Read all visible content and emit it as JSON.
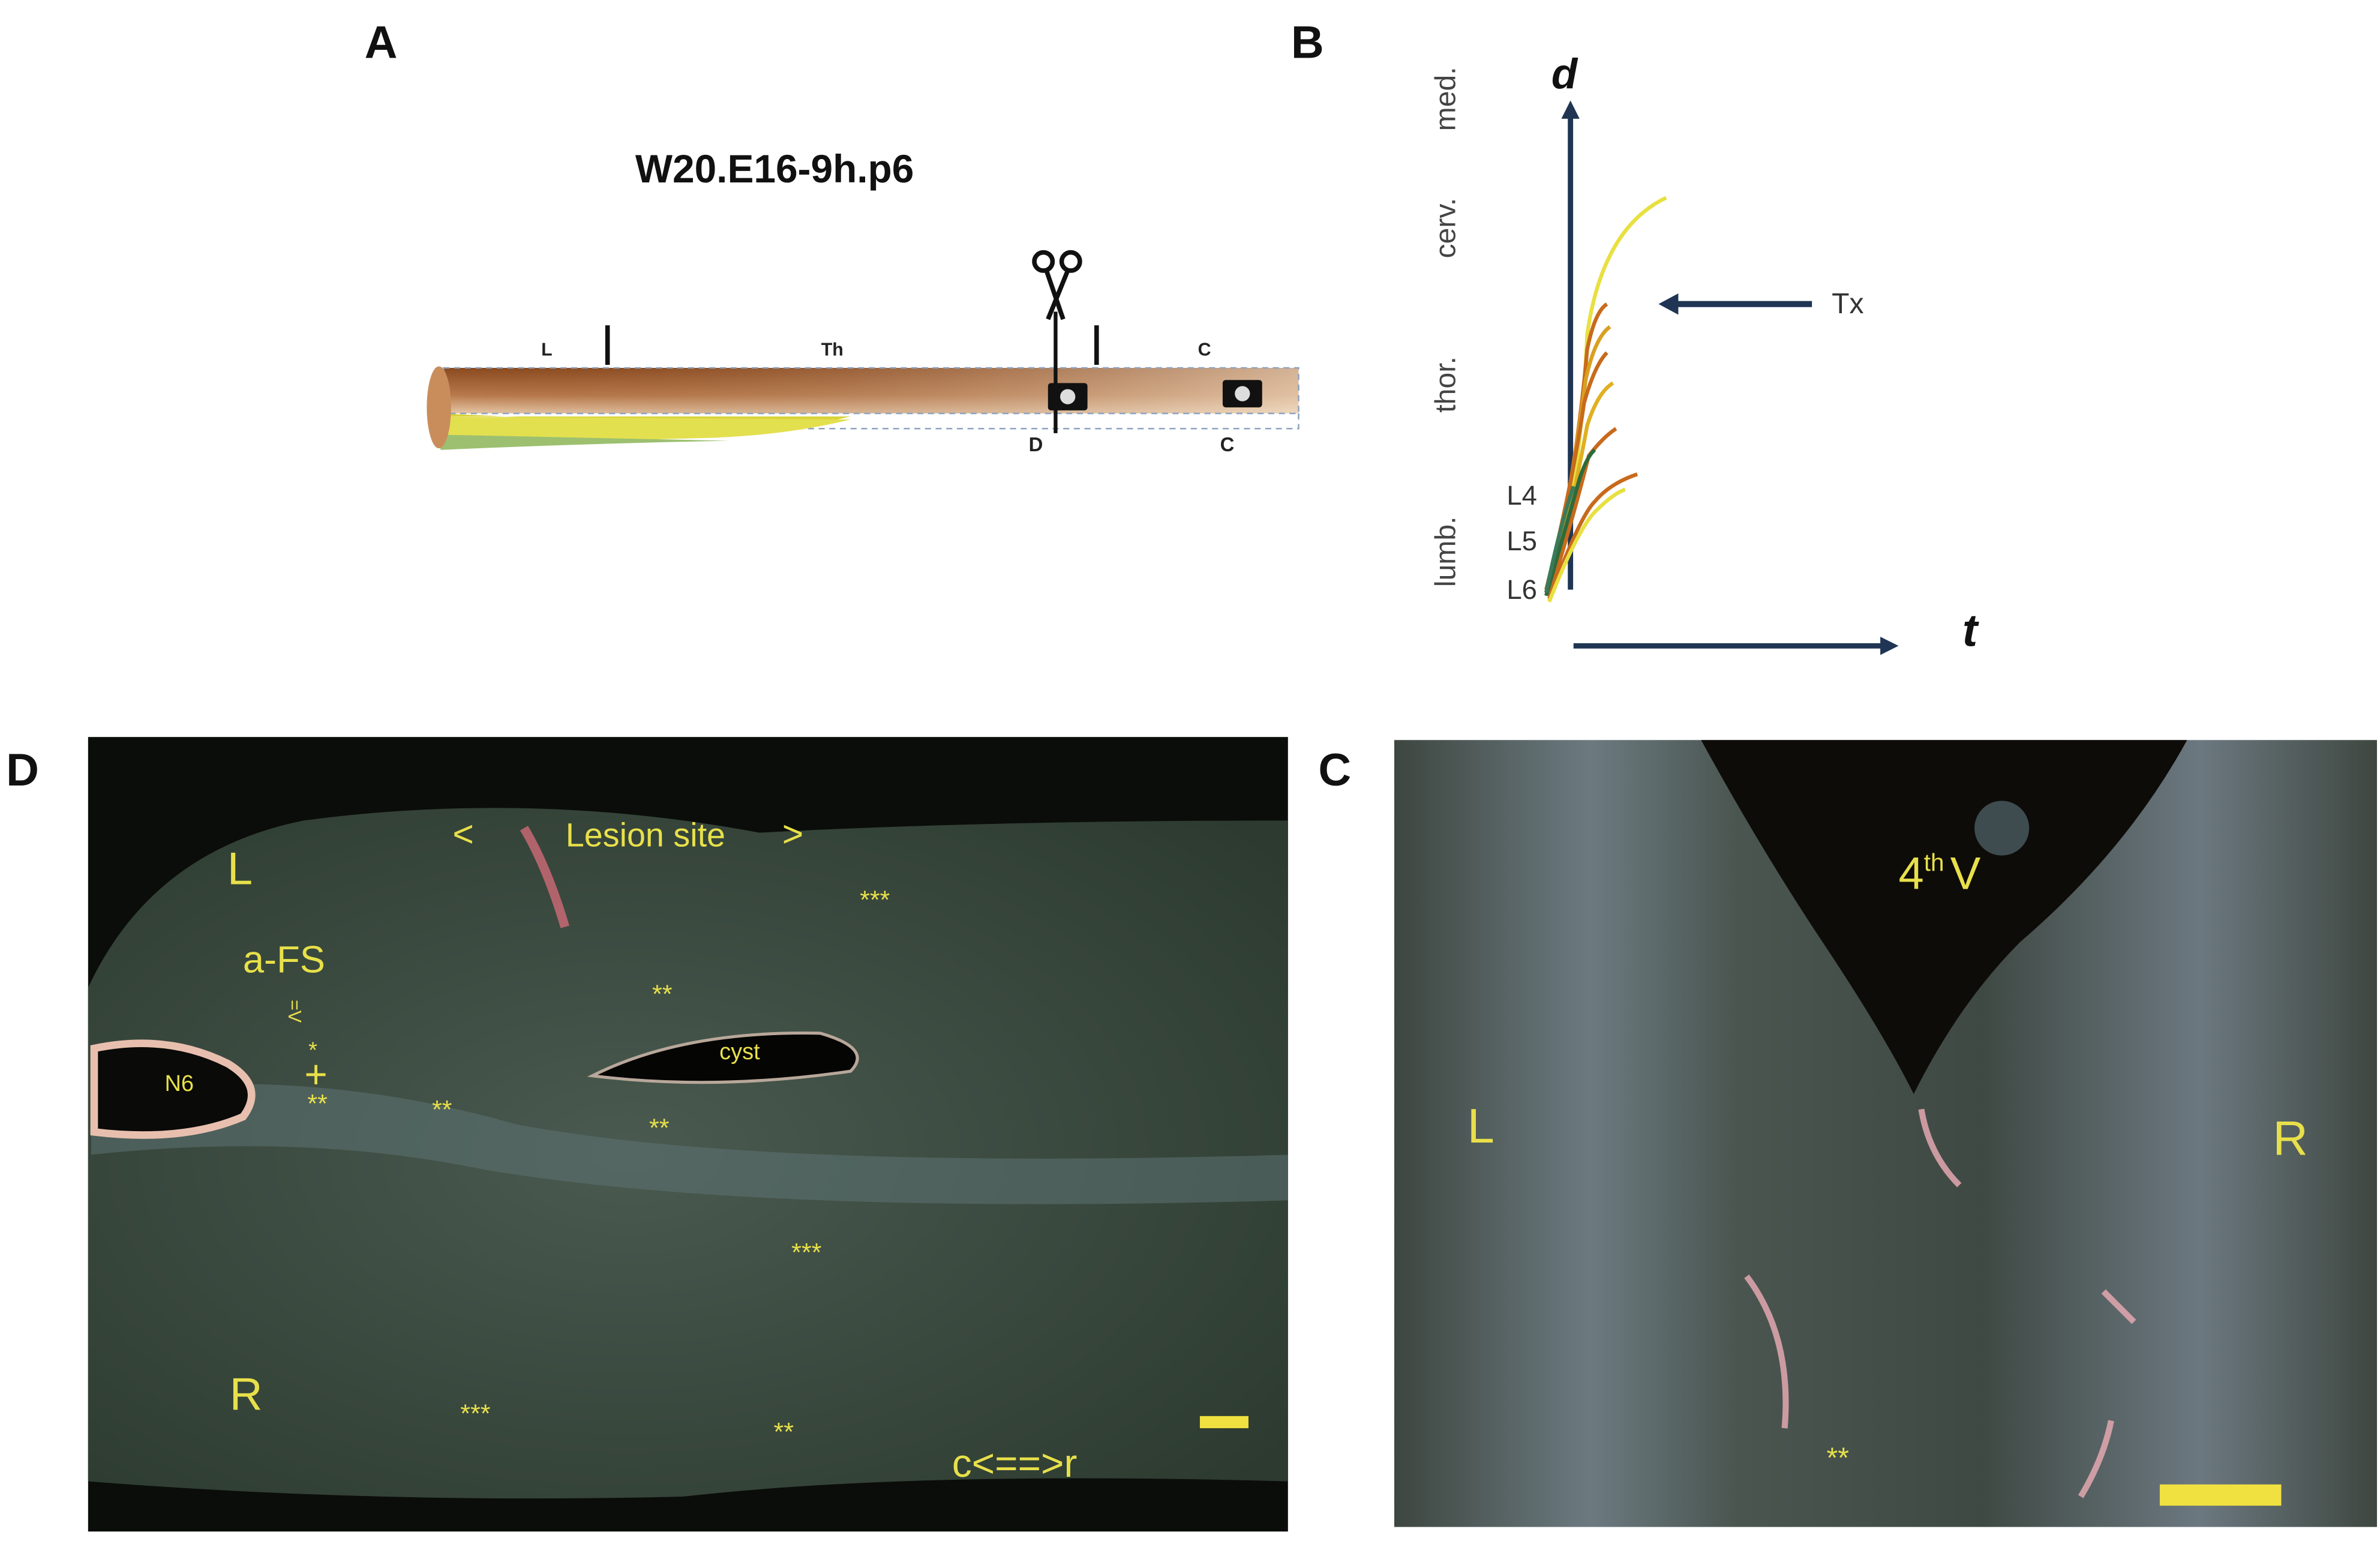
{
  "panel_a": {
    "label": "A",
    "title": "W20.E16-9h.p6",
    "segments": [
      "L",
      "Th",
      "C"
    ],
    "markers": [
      "D",
      "C"
    ]
  },
  "panel_b": {
    "label": "B",
    "y_axis": "d",
    "x_axis": "t",
    "regions": [
      "med.",
      "cerv.",
      "thor.",
      "lumb."
    ],
    "levels": [
      "L4",
      "L5",
      "L6"
    ],
    "arrow_label": "Tx"
  },
  "panel_d": {
    "label": "D",
    "lesion": [
      "<",
      "Lesion site",
      ">"
    ],
    "side_left": "L",
    "side_right": "R",
    "afs": "a-FS",
    "afs_sym": "=V",
    "nerve": "N6",
    "cyst": "cyst",
    "plus": "+",
    "asterisks": [
      "***",
      "**",
      "*",
      "**",
      "**",
      "**",
      "***",
      "***",
      "**"
    ],
    "orientation": "c<==>r"
  },
  "panel_c": {
    "label": "C",
    "ventricle": "4",
    "ventricle_sup": "th",
    "ventricle_end": "V",
    "side_left": "L",
    "side_right": "R",
    "asterisks": "**"
  }
}
